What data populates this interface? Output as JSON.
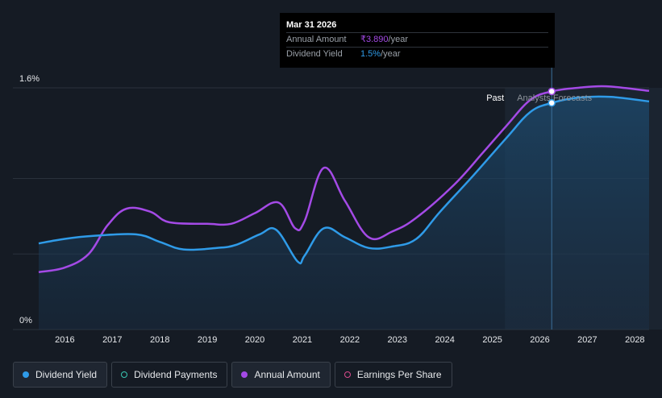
{
  "chart_data": {
    "type": "line",
    "y_axis": {
      "unit": "%",
      "range": [
        0,
        1.6
      ],
      "tick_labels": [
        "1.6%",
        "0%"
      ]
    },
    "x_axis": {
      "range": [
        2015.45,
        2028.3
      ],
      "tick_labels": [
        "2016",
        "2017",
        "2018",
        "2019",
        "2020",
        "2021",
        "2022",
        "2023",
        "2024",
        "2025",
        "2026",
        "2027",
        "2028"
      ]
    },
    "regions": {
      "past_label": "Past",
      "forecast_label": "Analysts Forecasts",
      "boundary_x": 2026.25
    },
    "series": [
      {
        "name": "Dividend Yield",
        "color": "#2f9be8",
        "points": [
          [
            2015.45,
            0.57
          ],
          [
            2016,
            0.6
          ],
          [
            2016.6,
            0.62
          ],
          [
            2017.5,
            0.63
          ],
          [
            2018,
            0.58
          ],
          [
            2018.5,
            0.53
          ],
          [
            2019.2,
            0.54
          ],
          [
            2019.6,
            0.56
          ],
          [
            2020.1,
            0.63
          ],
          [
            2020.45,
            0.66
          ],
          [
            2020.9,
            0.45
          ],
          [
            2021.05,
            0.49
          ],
          [
            2021.45,
            0.67
          ],
          [
            2021.9,
            0.61
          ],
          [
            2022.4,
            0.54
          ],
          [
            2022.9,
            0.55
          ],
          [
            2023.4,
            0.6
          ],
          [
            2023.9,
            0.78
          ],
          [
            2024.6,
            1.02
          ],
          [
            2025.3,
            1.27
          ],
          [
            2025.8,
            1.44
          ],
          [
            2026.25,
            1.5
          ],
          [
            2026.8,
            1.535
          ],
          [
            2027.5,
            1.54
          ],
          [
            2028.3,
            1.51
          ]
        ]
      },
      {
        "name": "Annual Amount",
        "color": "#a44ae6",
        "points": [
          [
            2015.45,
            0.38
          ],
          [
            2016,
            0.41
          ],
          [
            2016.5,
            0.5
          ],
          [
            2016.9,
            0.69
          ],
          [
            2017.3,
            0.8
          ],
          [
            2017.8,
            0.78
          ],
          [
            2018.2,
            0.71
          ],
          [
            2019,
            0.7
          ],
          [
            2019.5,
            0.7
          ],
          [
            2020,
            0.77
          ],
          [
            2020.5,
            0.84
          ],
          [
            2020.85,
            0.67
          ],
          [
            2021.05,
            0.72
          ],
          [
            2021.45,
            1.07
          ],
          [
            2021.9,
            0.85
          ],
          [
            2022.4,
            0.61
          ],
          [
            2022.9,
            0.65
          ],
          [
            2023.4,
            0.74
          ],
          [
            2024.2,
            0.96
          ],
          [
            2024.8,
            1.17
          ],
          [
            2025.3,
            1.35
          ],
          [
            2025.8,
            1.52
          ],
          [
            2026.25,
            1.576
          ],
          [
            2026.8,
            1.6
          ],
          [
            2027.4,
            1.61
          ],
          [
            2028.3,
            1.58
          ]
        ]
      }
    ],
    "highlight": {
      "x": 2026.25,
      "yield": 1.5,
      "amount": 1.576
    },
    "grid": "horizontal"
  },
  "tooltip": {
    "date": "Mar 31 2026",
    "rows": [
      {
        "key": "Annual Amount",
        "value": "₹3.890",
        "unit": "/year"
      },
      {
        "key": "Dividend Yield",
        "value": "1.5%",
        "unit": "/year"
      }
    ]
  },
  "legend": {
    "items": [
      {
        "label": "Dividend Yield",
        "color": "#2f9be8"
      },
      {
        "label": "Dividend Payments",
        "color": "#39c7b3"
      },
      {
        "label": "Annual Amount",
        "color": "#a44ae6"
      },
      {
        "label": "Earnings Per Share",
        "color": "#d94a8c"
      }
    ]
  }
}
